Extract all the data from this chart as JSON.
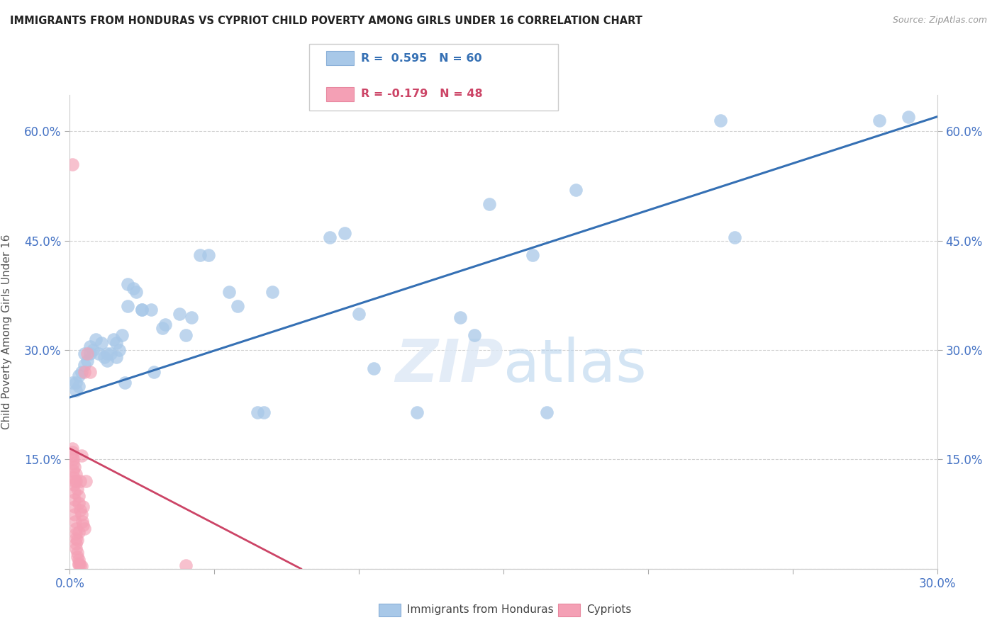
{
  "title": "IMMIGRANTS FROM HONDURAS VS CYPRIOT CHILD POVERTY AMONG GIRLS UNDER 16 CORRELATION CHART",
  "source": "Source: ZipAtlas.com",
  "xlabel_blue": "Immigrants from Honduras",
  "xlabel_pink": "Cypriots",
  "ylabel": "Child Poverty Among Girls Under 16",
  "x_tick_vals": [
    0.0,
    0.05,
    0.1,
    0.15,
    0.2,
    0.25,
    0.3
  ],
  "x_tick_labels": [
    "0.0%",
    "",
    "",
    "",
    "",
    "",
    "30.0%"
  ],
  "y_tick_vals": [
    0.0,
    0.15,
    0.3,
    0.45,
    0.6
  ],
  "y_tick_labels_left": [
    "",
    "15.0%",
    "30.0%",
    "45.0%",
    "60.0%"
  ],
  "y_tick_labels_right": [
    "15.0%",
    "30.0%",
    "45.0%",
    "60.0%"
  ],
  "xlim": [
    0.0,
    0.3
  ],
  "ylim": [
    0.0,
    0.65
  ],
  "blue_R": "0.595",
  "blue_N": "60",
  "pink_R": "-0.179",
  "pink_N": "48",
  "blue_color": "#a8c8e8",
  "blue_line_color": "#3570b4",
  "pink_color": "#f4a0b5",
  "pink_line_color": "#cc4466",
  "background_color": "#ffffff",
  "grid_color": "#cccccc",
  "watermark_zip": "ZIP",
  "watermark_atlas": "atlas",
  "blue_dots": [
    [
      0.001,
      0.255
    ],
    [
      0.002,
      0.245
    ],
    [
      0.002,
      0.255
    ],
    [
      0.003,
      0.25
    ],
    [
      0.003,
      0.265
    ],
    [
      0.004,
      0.27
    ],
    [
      0.005,
      0.28
    ],
    [
      0.005,
      0.295
    ],
    [
      0.006,
      0.285
    ],
    [
      0.007,
      0.305
    ],
    [
      0.007,
      0.295
    ],
    [
      0.008,
      0.3
    ],
    [
      0.009,
      0.315
    ],
    [
      0.01,
      0.295
    ],
    [
      0.011,
      0.31
    ],
    [
      0.012,
      0.29
    ],
    [
      0.013,
      0.285
    ],
    [
      0.013,
      0.295
    ],
    [
      0.014,
      0.295
    ],
    [
      0.015,
      0.315
    ],
    [
      0.016,
      0.31
    ],
    [
      0.016,
      0.29
    ],
    [
      0.017,
      0.3
    ],
    [
      0.018,
      0.32
    ],
    [
      0.019,
      0.255
    ],
    [
      0.02,
      0.36
    ],
    [
      0.02,
      0.39
    ],
    [
      0.022,
      0.385
    ],
    [
      0.023,
      0.38
    ],
    [
      0.025,
      0.355
    ],
    [
      0.025,
      0.355
    ],
    [
      0.028,
      0.355
    ],
    [
      0.029,
      0.27
    ],
    [
      0.032,
      0.33
    ],
    [
      0.033,
      0.335
    ],
    [
      0.038,
      0.35
    ],
    [
      0.04,
      0.32
    ],
    [
      0.042,
      0.345
    ],
    [
      0.045,
      0.43
    ],
    [
      0.048,
      0.43
    ],
    [
      0.055,
      0.38
    ],
    [
      0.058,
      0.36
    ],
    [
      0.065,
      0.215
    ],
    [
      0.067,
      0.215
    ],
    [
      0.07,
      0.38
    ],
    [
      0.09,
      0.455
    ],
    [
      0.095,
      0.46
    ],
    [
      0.1,
      0.35
    ],
    [
      0.105,
      0.275
    ],
    [
      0.12,
      0.215
    ],
    [
      0.135,
      0.345
    ],
    [
      0.14,
      0.32
    ],
    [
      0.145,
      0.5
    ],
    [
      0.16,
      0.43
    ],
    [
      0.165,
      0.215
    ],
    [
      0.175,
      0.52
    ],
    [
      0.225,
      0.615
    ],
    [
      0.23,
      0.455
    ],
    [
      0.28,
      0.615
    ],
    [
      0.29,
      0.62
    ]
  ],
  "pink_dots": [
    [
      0.0008,
      0.555
    ],
    [
      0.001,
      0.165
    ],
    [
      0.001,
      0.155
    ],
    [
      0.0012,
      0.145
    ],
    [
      0.0012,
      0.135
    ],
    [
      0.0013,
      0.125
    ],
    [
      0.0014,
      0.115
    ],
    [
      0.0015,
      0.105
    ],
    [
      0.0015,
      0.095
    ],
    [
      0.0016,
      0.085
    ],
    [
      0.0017,
      0.075
    ],
    [
      0.0018,
      0.065
    ],
    [
      0.002,
      0.055
    ],
    [
      0.002,
      0.048
    ],
    [
      0.002,
      0.042
    ],
    [
      0.0022,
      0.035
    ],
    [
      0.0022,
      0.028
    ],
    [
      0.0025,
      0.022
    ],
    [
      0.0025,
      0.016
    ],
    [
      0.003,
      0.012
    ],
    [
      0.003,
      0.008
    ],
    [
      0.0032,
      0.006
    ],
    [
      0.0035,
      0.005
    ],
    [
      0.004,
      0.004
    ],
    [
      0.004,
      0.155
    ],
    [
      0.005,
      0.27
    ],
    [
      0.006,
      0.295
    ],
    [
      0.007,
      0.27
    ],
    [
      0.0055,
      0.12
    ],
    [
      0.0035,
      0.12
    ],
    [
      0.0045,
      0.085
    ],
    [
      0.003,
      0.05
    ],
    [
      0.0025,
      0.04
    ],
    [
      0.0015,
      0.12
    ],
    [
      0.001,
      0.16
    ],
    [
      0.0012,
      0.15
    ],
    [
      0.0015,
      0.14
    ],
    [
      0.002,
      0.13
    ],
    [
      0.0022,
      0.12
    ],
    [
      0.0025,
      0.11
    ],
    [
      0.003,
      0.1
    ],
    [
      0.0032,
      0.09
    ],
    [
      0.0035,
      0.08
    ],
    [
      0.004,
      0.075
    ],
    [
      0.0042,
      0.065
    ],
    [
      0.0045,
      0.06
    ],
    [
      0.005,
      0.055
    ],
    [
      0.04,
      0.005
    ]
  ],
  "blue_line_x": [
    0.0,
    0.3
  ],
  "blue_line_y": [
    0.235,
    0.62
  ],
  "pink_line_x": [
    0.0,
    0.08
  ],
  "pink_line_y": [
    0.165,
    0.0
  ]
}
